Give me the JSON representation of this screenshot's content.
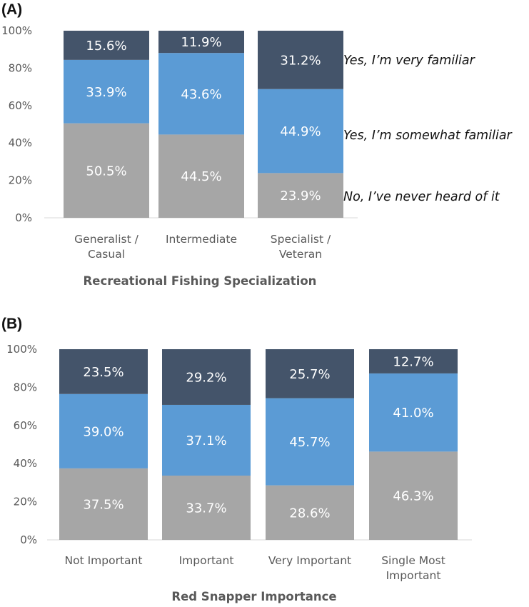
{
  "chart_data": [
    {
      "type": "bar",
      "stacked": true,
      "panel_label": "(A)",
      "xlabel": "Recreational Fishing Specialization",
      "ylabel": "",
      "ylim": [
        0,
        100
      ],
      "yticks": [
        "0%",
        "20%",
        "40%",
        "60%",
        "80%",
        "100%"
      ],
      "categories": [
        [
          "Generalist /",
          "Casual"
        ],
        [
          "Intermediate"
        ],
        [
          "Specialist /",
          "Veteran"
        ]
      ],
      "series": [
        {
          "name": "No, I've never heard of it",
          "color": "#a6a6a6",
          "values": [
            50.5,
            44.5,
            23.9
          ],
          "labels": [
            "50.5%",
            "44.5%",
            "23.9%"
          ]
        },
        {
          "name": "Yes, I'm somewhat familiar",
          "color": "#5b9bd5",
          "values": [
            33.9,
            43.6,
            44.9
          ],
          "labels": [
            "33.9%",
            "43.6%",
            "44.9%"
          ]
        },
        {
          "name": "Yes, I'm very familiar",
          "color": "#44546a",
          "values": [
            15.6,
            11.9,
            31.2
          ],
          "labels": [
            "15.6%",
            "11.9%",
            "31.2%"
          ]
        }
      ],
      "legend": [
        {
          "text": "Yes, I’m very familiar"
        },
        {
          "text": "Yes, I’m somewhat familiar"
        },
        {
          "text": "No, I’ve never heard of it"
        }
      ],
      "legend_placement": "right"
    },
    {
      "type": "bar",
      "stacked": true,
      "panel_label": "(B)",
      "xlabel": "Red Snapper Importance",
      "ylabel": "",
      "ylim": [
        0,
        100
      ],
      "yticks": [
        "0%",
        "20%",
        "40%",
        "60%",
        "80%",
        "100%"
      ],
      "categories": [
        [
          "Not Important"
        ],
        [
          "Important"
        ],
        [
          "Very Important"
        ],
        [
          "Single Most",
          "Important"
        ]
      ],
      "series": [
        {
          "color": "#a6a6a6",
          "values": [
            37.5,
            33.7,
            28.6,
            46.3
          ],
          "labels": [
            "37.5%",
            "33.7%",
            "28.6%",
            "46.3%"
          ]
        },
        {
          "color": "#5b9bd5",
          "values": [
            39.0,
            37.1,
            45.7,
            41.0
          ],
          "labels": [
            "39.0%",
            "37.1%",
            "45.7%",
            "41.0%"
          ]
        },
        {
          "color": "#44546a",
          "values": [
            23.5,
            29.2,
            25.7,
            12.7
          ],
          "labels": [
            "23.5%",
            "29.2%",
            "25.7%",
            "12.7%"
          ]
        }
      ]
    }
  ]
}
